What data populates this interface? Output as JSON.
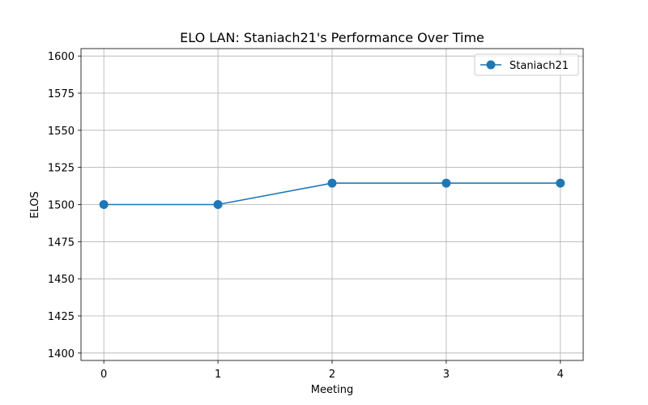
{
  "chart_data": {
    "type": "line",
    "title": "ELO LAN: Staniach21's Performance Over Time",
    "xlabel": "Meeting",
    "ylabel": "ELOS",
    "x": [
      0,
      1,
      2,
      3,
      4
    ],
    "xticks": [
      0,
      1,
      2,
      3,
      4
    ],
    "xlim": [
      -0.2,
      4.2
    ],
    "yticks": [
      1400,
      1425,
      1450,
      1475,
      1500,
      1525,
      1550,
      1575,
      1600
    ],
    "ylim": [
      1395,
      1605
    ],
    "grid": true,
    "legend_position": "top-right",
    "series": [
      {
        "name": "Staniach21",
        "color": "#1f77b4",
        "marker": "circle",
        "values": [
          1500,
          1500,
          1514.4,
          1514.4,
          1514.4
        ]
      }
    ]
  }
}
